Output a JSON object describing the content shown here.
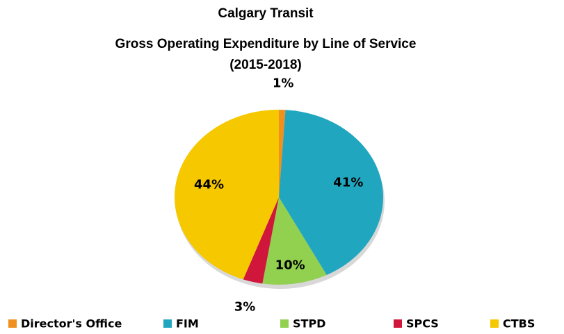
{
  "chart_data": {
    "type": "pie",
    "title": [
      "Calgary Transit",
      "Gross Operating Expenditure by Line of Service",
      "(2015-2018)"
    ],
    "categories": [
      "Director's Office",
      "FIM",
      "STPD",
      "SPCS",
      "CTBS"
    ],
    "values": [
      1,
      41,
      10,
      3,
      44
    ],
    "value_labels": [
      "1%",
      "41%",
      "10%",
      "3%",
      "44%"
    ],
    "colors": [
      "#f0901e",
      "#21a6c0",
      "#92d050",
      "#d0163a",
      "#f5c800"
    ],
    "legend": "bottom"
  }
}
